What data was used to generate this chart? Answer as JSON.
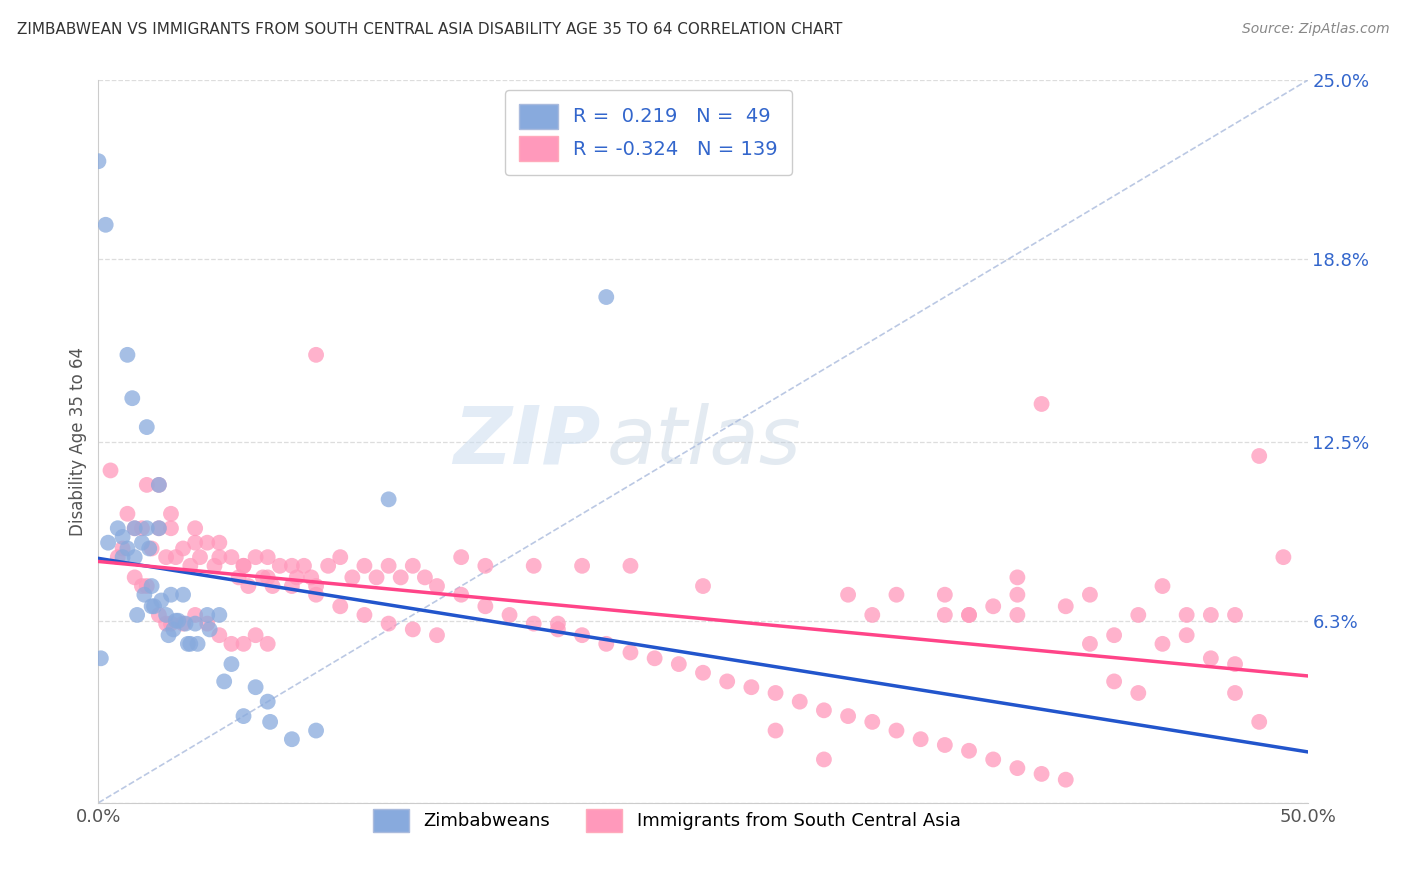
{
  "title": "ZIMBABWEAN VS IMMIGRANTS FROM SOUTH CENTRAL ASIA DISABILITY AGE 35 TO 64 CORRELATION CHART",
  "source": "Source: ZipAtlas.com",
  "ylabel": "Disability Age 35 to 64",
  "xlim": [
    0.0,
    0.5
  ],
  "ylim": [
    0.0,
    0.25
  ],
  "yticks_right": [
    0.0,
    0.063,
    0.125,
    0.188,
    0.25
  ],
  "ytick_right_labels": [
    "",
    "6.3%",
    "12.5%",
    "18.8%",
    "25.0%"
  ],
  "blue_color": "#88AADD",
  "pink_color": "#FF99BB",
  "blue_line_color": "#2255CC",
  "pink_line_color": "#FF4488",
  "watermark_zip": "ZIP",
  "watermark_atlas": "atlas",
  "zimbabwean_x": [
    0.0,
    0.003,
    0.004,
    0.008,
    0.01,
    0.01,
    0.012,
    0.012,
    0.014,
    0.015,
    0.015,
    0.016,
    0.018,
    0.019,
    0.02,
    0.02,
    0.021,
    0.022,
    0.022,
    0.023,
    0.025,
    0.025,
    0.026,
    0.028,
    0.029,
    0.03,
    0.031,
    0.032,
    0.033,
    0.035,
    0.036,
    0.037,
    0.038,
    0.04,
    0.041,
    0.045,
    0.046,
    0.05,
    0.052,
    0.055,
    0.06,
    0.065,
    0.07,
    0.071,
    0.08,
    0.09,
    0.12,
    0.21,
    0.001
  ],
  "zimbabwean_y": [
    0.222,
    0.2,
    0.09,
    0.095,
    0.085,
    0.092,
    0.088,
    0.155,
    0.14,
    0.095,
    0.085,
    0.065,
    0.09,
    0.072,
    0.13,
    0.095,
    0.088,
    0.075,
    0.068,
    0.068,
    0.11,
    0.095,
    0.07,
    0.065,
    0.058,
    0.072,
    0.06,
    0.063,
    0.063,
    0.072,
    0.062,
    0.055,
    0.055,
    0.062,
    0.055,
    0.065,
    0.06,
    0.065,
    0.042,
    0.048,
    0.03,
    0.04,
    0.035,
    0.028,
    0.022,
    0.025,
    0.105,
    0.175,
    0.05
  ],
  "immigrant_x": [
    0.005,
    0.008,
    0.01,
    0.012,
    0.015,
    0.015,
    0.018,
    0.018,
    0.02,
    0.02,
    0.022,
    0.025,
    0.025,
    0.028,
    0.028,
    0.03,
    0.03,
    0.032,
    0.035,
    0.035,
    0.038,
    0.04,
    0.04,
    0.042,
    0.045,
    0.045,
    0.048,
    0.05,
    0.05,
    0.055,
    0.055,
    0.058,
    0.06,
    0.06,
    0.062,
    0.065,
    0.065,
    0.068,
    0.07,
    0.07,
    0.072,
    0.075,
    0.08,
    0.082,
    0.085,
    0.088,
    0.09,
    0.09,
    0.095,
    0.1,
    0.105,
    0.11,
    0.115,
    0.12,
    0.125,
    0.13,
    0.135,
    0.14,
    0.15,
    0.16,
    0.18,
    0.19,
    0.2,
    0.22,
    0.25,
    0.28,
    0.3,
    0.31,
    0.32,
    0.33,
    0.35,
    0.36,
    0.38,
    0.4,
    0.41,
    0.42,
    0.43,
    0.44,
    0.45,
    0.46,
    0.47,
    0.48,
    0.49,
    0.38,
    0.39,
    0.41,
    0.42,
    0.43,
    0.44,
    0.46,
    0.47,
    0.48,
    0.35,
    0.36,
    0.37,
    0.38,
    0.45,
    0.47,
    0.025,
    0.03,
    0.04,
    0.05,
    0.06,
    0.07,
    0.08,
    0.09,
    0.1,
    0.11,
    0.12,
    0.13,
    0.14,
    0.15,
    0.16,
    0.17,
    0.18,
    0.19,
    0.2,
    0.21,
    0.22,
    0.23,
    0.24,
    0.25,
    0.26,
    0.27,
    0.28,
    0.29,
    0.3,
    0.31,
    0.32,
    0.33,
    0.34,
    0.35,
    0.36,
    0.37,
    0.38,
    0.39,
    0.4
  ],
  "immigrant_y": [
    0.115,
    0.085,
    0.088,
    0.1,
    0.095,
    0.078,
    0.095,
    0.075,
    0.11,
    0.075,
    0.088,
    0.095,
    0.065,
    0.085,
    0.062,
    0.095,
    0.062,
    0.085,
    0.088,
    0.062,
    0.082,
    0.095,
    0.065,
    0.085,
    0.09,
    0.062,
    0.082,
    0.09,
    0.058,
    0.085,
    0.055,
    0.078,
    0.082,
    0.055,
    0.075,
    0.085,
    0.058,
    0.078,
    0.085,
    0.055,
    0.075,
    0.082,
    0.082,
    0.078,
    0.082,
    0.078,
    0.155,
    0.075,
    0.082,
    0.085,
    0.078,
    0.082,
    0.078,
    0.082,
    0.078,
    0.082,
    0.078,
    0.075,
    0.085,
    0.082,
    0.082,
    0.062,
    0.082,
    0.082,
    0.075,
    0.025,
    0.015,
    0.072,
    0.065,
    0.072,
    0.072,
    0.065,
    0.078,
    0.068,
    0.055,
    0.042,
    0.038,
    0.055,
    0.058,
    0.05,
    0.038,
    0.028,
    0.085,
    0.072,
    0.138,
    0.072,
    0.058,
    0.065,
    0.075,
    0.065,
    0.048,
    0.12,
    0.065,
    0.065,
    0.068,
    0.065,
    0.065,
    0.065,
    0.11,
    0.1,
    0.09,
    0.085,
    0.082,
    0.078,
    0.075,
    0.072,
    0.068,
    0.065,
    0.062,
    0.06,
    0.058,
    0.072,
    0.068,
    0.065,
    0.062,
    0.06,
    0.058,
    0.055,
    0.052,
    0.05,
    0.048,
    0.045,
    0.042,
    0.04,
    0.038,
    0.035,
    0.032,
    0.03,
    0.028,
    0.025,
    0.022,
    0.02,
    0.018,
    0.015,
    0.012,
    0.01,
    0.008
  ]
}
